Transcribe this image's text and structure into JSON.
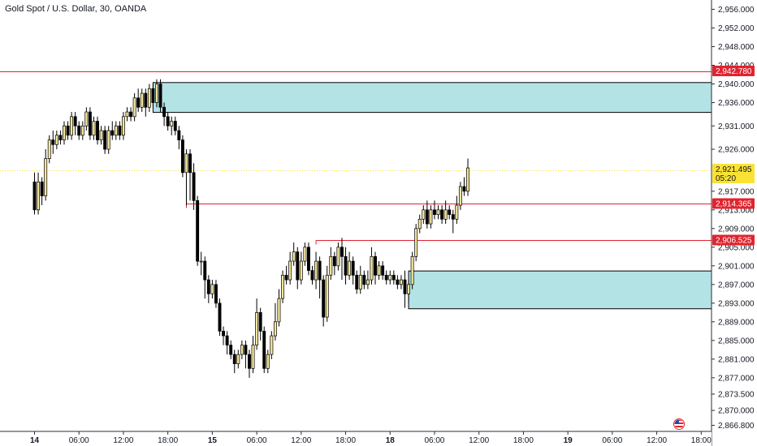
{
  "header": {
    "title": "Gold Spot / U.S. Dollar, 30, OANDA"
  },
  "colors": {
    "up_body": "#f6e69a",
    "down_body": "#000000",
    "wick": "#000000",
    "level_line": "#e0242f",
    "zone_fill": "#b4e3e6",
    "zone_border": "#000000",
    "current_tag": "#fae234"
  },
  "chart_data": {
    "type": "candlestick",
    "instrument": "Gold Spot / U.S. Dollar",
    "interval": "30",
    "source": "OANDA",
    "y_range": [
      2865.5,
      2958.0
    ],
    "y_ticks": [
      {
        "value": 2956,
        "label": "2,956.000"
      },
      {
        "value": 2952,
        "label": "2,952.000"
      },
      {
        "value": 2948,
        "label": "2,948.000"
      },
      {
        "value": 2944,
        "label": "2,944.000"
      },
      {
        "value": 2940,
        "label": "2,940.000"
      },
      {
        "value": 2936,
        "label": "2,936.000"
      },
      {
        "value": 2931,
        "label": "2,931.000"
      },
      {
        "value": 2926,
        "label": "2,926.000"
      },
      {
        "value": 2917,
        "label": "2,917.000"
      },
      {
        "value": 2913,
        "label": "2,913.000"
      },
      {
        "value": 2909,
        "label": "2,909.000"
      },
      {
        "value": 2905,
        "label": "2,905.000"
      },
      {
        "value": 2901,
        "label": "2,901.000"
      },
      {
        "value": 2897,
        "label": "2,897.000"
      },
      {
        "value": 2893,
        "label": "2,893.000"
      },
      {
        "value": 2889,
        "label": "2,889.000"
      },
      {
        "value": 2885,
        "label": "2,885.000"
      },
      {
        "value": 2881,
        "label": "2,881.000"
      },
      {
        "value": 2877,
        "label": "2,877.000"
      },
      {
        "value": 2873.5,
        "label": "2,873.500"
      },
      {
        "value": 2870,
        "label": "2,870.000"
      },
      {
        "value": 2866.8,
        "label": "2,866.800"
      }
    ],
    "x_ticks": [
      {
        "index": 0,
        "label": "14",
        "bold": true
      },
      {
        "index": 12,
        "label": "06:00"
      },
      {
        "index": 24,
        "label": "12:00"
      },
      {
        "index": 36,
        "label": "18:00"
      },
      {
        "index": 48,
        "label": "15",
        "bold": true
      },
      {
        "index": 60,
        "label": "06:00"
      },
      {
        "index": 72,
        "label": "12:00"
      },
      {
        "index": 84,
        "label": "18:00"
      },
      {
        "index": 96,
        "label": "18",
        "bold": true
      },
      {
        "index": 108,
        "label": "06:00"
      },
      {
        "index": 120,
        "label": "12:00"
      },
      {
        "index": 132,
        "label": "18:00"
      },
      {
        "index": 144,
        "label": "19",
        "bold": true
      },
      {
        "index": 156,
        "label": "06:00"
      },
      {
        "index": 168,
        "label": "12:00"
      },
      {
        "index": 180,
        "label": "18:00"
      }
    ],
    "levels": [
      {
        "value": 2942.78,
        "label": "2,942.780",
        "from_index": -10
      },
      {
        "value": 2914.365,
        "label": "2,914.365",
        "from_index": 41
      },
      {
        "value": 2906.525,
        "label": "2,906.525",
        "from_index": 76
      }
    ],
    "zones": [
      {
        "top": 2940.3,
        "bottom": 2933.9,
        "from_index": 32
      },
      {
        "top": 2899.9,
        "bottom": 2891.8,
        "from_index": 101
      }
    ],
    "current_price": {
      "value": 2921.495,
      "label": "2,921.495",
      "countdown": "05:20"
    },
    "candles": [
      [
        2919,
        2913,
        2921,
        2912
      ],
      [
        2913,
        2919,
        2921,
        2912
      ],
      [
        2919,
        2916,
        2920,
        2914
      ],
      [
        2916,
        2924,
        2926,
        2915
      ],
      [
        2924,
        2928,
        2929,
        2923
      ],
      [
        2928,
        2927,
        2930,
        2925
      ],
      [
        2927,
        2929,
        2930,
        2926
      ],
      [
        2929,
        2928,
        2930,
        2927
      ],
      [
        2928,
        2931,
        2932,
        2927
      ],
      [
        2931,
        2929,
        2932,
        2928
      ],
      [
        2929,
        2933,
        2934,
        2928
      ],
      [
        2933,
        2931,
        2934,
        2929
      ],
      [
        2931,
        2929,
        2932,
        2928
      ],
      [
        2929,
        2931,
        2932,
        2928
      ],
      [
        2931,
        2934,
        2935,
        2930
      ],
      [
        2934,
        2929,
        2935,
        2928
      ],
      [
        2929,
        2932,
        2933,
        2928
      ],
      [
        2932,
        2928,
        2933,
        2927
      ],
      [
        2928,
        2930,
        2931,
        2927
      ],
      [
        2930,
        2926,
        2931,
        2925
      ],
      [
        2926,
        2930,
        2931,
        2925
      ],
      [
        2930,
        2929,
        2932,
        2928
      ],
      [
        2929,
        2931,
        2932,
        2928
      ],
      [
        2931,
        2929,
        2932,
        2928
      ],
      [
        2929,
        2933,
        2934,
        2928
      ],
      [
        2933,
        2934,
        2935,
        2932
      ],
      [
        2934,
        2933,
        2935,
        2932
      ],
      [
        2933,
        2937,
        2938,
        2932
      ],
      [
        2937,
        2935,
        2939,
        2934
      ],
      [
        2935,
        2938,
        2939,
        2934
      ],
      [
        2938,
        2935,
        2939,
        2933
      ],
      [
        2935,
        2939,
        2940,
        2934
      ],
      [
        2939,
        2936,
        2940,
        2935
      ],
      [
        2936,
        2940,
        2941,
        2935
      ],
      [
        2940,
        2935,
        2941,
        2934
      ],
      [
        2935,
        2933,
        2936,
        2931
      ],
      [
        2933,
        2931,
        2934,
        2930
      ],
      [
        2931,
        2932,
        2933,
        2929
      ],
      [
        2932,
        2930,
        2933,
        2929
      ],
      [
        2930,
        2928,
        2931,
        2926
      ],
      [
        2928,
        2921,
        2929,
        2920
      ],
      [
        2921,
        2925,
        2926,
        2914
      ],
      [
        2925,
        2921,
        2926,
        2915
      ],
      [
        2921,
        2915,
        2923,
        2913
      ],
      [
        2915,
        2902,
        2916,
        2901
      ],
      [
        2902,
        2902,
        2904,
        2899
      ],
      [
        2902,
        2898,
        2903,
        2894
      ],
      [
        2898,
        2895,
        2899,
        2893
      ],
      [
        2895,
        2897,
        2898,
        2894
      ],
      [
        2897,
        2893,
        2898,
        2892
      ],
      [
        2893,
        2887,
        2894,
        2886
      ],
      [
        2887,
        2886,
        2888,
        2884
      ],
      [
        2886,
        2884,
        2887,
        2882
      ],
      [
        2884,
        2882,
        2885,
        2881
      ],
      [
        2882,
        2880,
        2883,
        2878
      ],
      [
        2880,
        2882,
        2883,
        2879
      ],
      [
        2882,
        2884,
        2885,
        2881
      ],
      [
        2884,
        2882,
        2885,
        2879
      ],
      [
        2882,
        2879,
        2883,
        2877
      ],
      [
        2879,
        2884,
        2886,
        2878
      ],
      [
        2884,
        2891,
        2894,
        2883
      ],
      [
        2891,
        2887,
        2892,
        2885
      ],
      [
        2887,
        2879,
        2888,
        2878
      ],
      [
        2879,
        2882,
        2883,
        2878
      ],
      [
        2882,
        2886,
        2887,
        2881
      ],
      [
        2886,
        2889,
        2893,
        2885
      ],
      [
        2889,
        2894,
        2896,
        2888
      ],
      [
        2894,
        2899,
        2900,
        2893
      ],
      [
        2899,
        2898,
        2901,
        2897
      ],
      [
        2898,
        2902,
        2904,
        2897
      ],
      [
        2902,
        2904,
        2906,
        2901
      ],
      [
        2904,
        2898,
        2905,
        2896
      ],
      [
        2898,
        2902,
        2904,
        2897
      ],
      [
        2902,
        2905,
        2906,
        2901
      ],
      [
        2905,
        2900,
        2906,
        2899
      ],
      [
        2900,
        2898,
        2901,
        2897
      ],
      [
        2898,
        2902,
        2904,
        2896
      ],
      [
        2902,
        2898,
        2903,
        2894
      ],
      [
        2898,
        2890,
        2899,
        2888
      ],
      [
        2890,
        2899,
        2901,
        2889
      ],
      [
        2899,
        2903,
        2905,
        2898
      ],
      [
        2903,
        2901,
        2904,
        2899
      ],
      [
        2901,
        2905,
        2906,
        2900
      ],
      [
        2905,
        2903,
        2907,
        2898
      ],
      [
        2903,
        2899,
        2905,
        2897
      ],
      [
        2899,
        2902,
        2904,
        2898
      ],
      [
        2902,
        2899,
        2903,
        2897
      ],
      [
        2899,
        2896,
        2900,
        2895
      ],
      [
        2896,
        2899,
        2901,
        2895
      ],
      [
        2899,
        2897,
        2900,
        2896
      ],
      [
        2897,
        2898,
        2900,
        2896
      ],
      [
        2898,
        2903,
        2905,
        2897
      ],
      [
        2903,
        2899,
        2904,
        2897
      ],
      [
        2899,
        2901,
        2902,
        2898
      ],
      [
        2901,
        2899,
        2902,
        2898
      ],
      [
        2899,
        2898,
        2900,
        2897
      ],
      [
        2898,
        2899,
        2900,
        2897
      ],
      [
        2899,
        2898,
        2900,
        2897
      ],
      [
        2898,
        2897,
        2899,
        2896
      ],
      [
        2897,
        2898,
        2899,
        2896
      ],
      [
        2898,
        2895,
        2900,
        2892
      ],
      [
        2895,
        2897,
        2898,
        2893
      ],
      [
        2897,
        2903,
        2904,
        2896
      ],
      [
        2903,
        2909,
        2910,
        2902
      ],
      [
        2909,
        2911,
        2912,
        2908
      ],
      [
        2911,
        2913,
        2914,
        2910
      ],
      [
        2913,
        2910,
        2915,
        2909
      ],
      [
        2910,
        2913,
        2914,
        2909
      ],
      [
        2913,
        2912,
        2915,
        2911
      ],
      [
        2912,
        2913,
        2914,
        2911
      ],
      [
        2913,
        2911,
        2914,
        2910
      ],
      [
        2911,
        2913,
        2915,
        2910
      ],
      [
        2913,
        2912,
        2914,
        2911
      ],
      [
        2912,
        2911,
        2913,
        2908
      ],
      [
        2911,
        2914,
        2916,
        2910
      ],
      [
        2914,
        2918,
        2919,
        2913
      ],
      [
        2918,
        2917,
        2920,
        2916
      ],
      [
        2917,
        2922,
        2924,
        2916
      ]
    ]
  },
  "footer": {
    "flag_icon": "us-flag-icon"
  }
}
